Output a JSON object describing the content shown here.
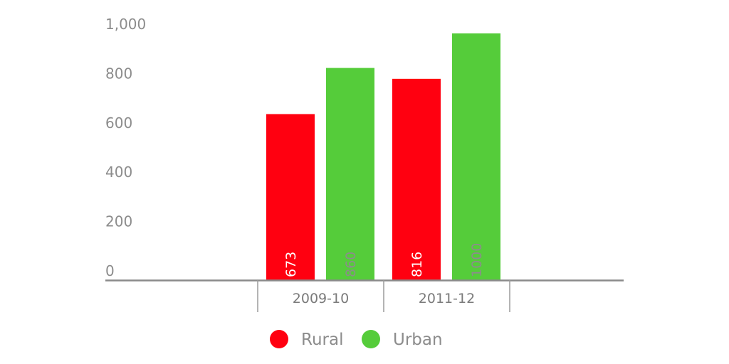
{
  "chart_data": {
    "type": "bar",
    "categories": [
      "2009-10",
      "2011-12"
    ],
    "series": [
      {
        "name": "Rural",
        "values": [
          673,
          816
        ],
        "color": "#ff0010",
        "label_color": "#ffffff"
      },
      {
        "name": "Urban",
        "values": [
          860,
          1000
        ],
        "color": "#55cc3a",
        "label_color": "#8c8c8c"
      }
    ],
    "ylim": [
      0,
      1000
    ],
    "yticks": [
      0,
      200,
      400,
      600,
      800,
      1000
    ],
    "ytick_labels": [
      "0",
      "200",
      "400",
      "600",
      "800",
      "1,000"
    ],
    "grid": false,
    "legend": "bottom-center"
  }
}
